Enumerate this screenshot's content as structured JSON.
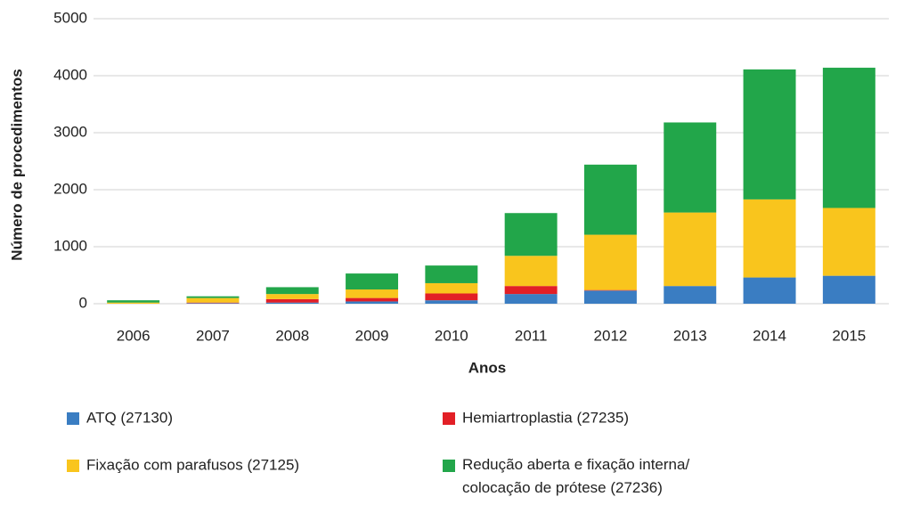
{
  "chart_data": {
    "type": "stacked-bar",
    "xlabel": "Anos",
    "ylabel": "Número de procedimentos",
    "categories": [
      "2006",
      "2007",
      "2008",
      "2009",
      "2010",
      "2011",
      "2012",
      "2013",
      "2014",
      "2015"
    ],
    "series": [
      {
        "name": "ATQ (27130)",
        "color": "#3a7dc2",
        "values": [
          0,
          10,
          20,
          40,
          60,
          170,
          230,
          310,
          460,
          490
        ]
      },
      {
        "name": "Hemiartroplastia (27235)",
        "color": "#e21f26",
        "values": [
          0,
          10,
          60,
          60,
          120,
          140,
          10,
          0,
          0,
          0
        ]
      },
      {
        "name": "Fixação com parafusos (27125)",
        "color": "#f9c51d",
        "values": [
          20,
          80,
          90,
          150,
          180,
          530,
          970,
          1290,
          1370,
          1190
        ]
      },
      {
        "name": "Redução aberta e fixação interna/ colocação de prótese (27236)",
        "color": "#22a64a",
        "values": [
          40,
          30,
          120,
          280,
          310,
          750,
          1230,
          1580,
          2280,
          2460
        ]
      }
    ],
    "ylim": [
      0,
      5000
    ],
    "yticks": [
      0,
      1000,
      2000,
      3000,
      4000,
      5000
    ],
    "grid": true
  }
}
